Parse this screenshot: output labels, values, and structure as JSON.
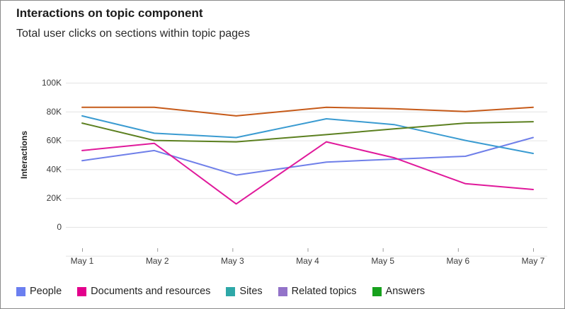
{
  "card": {
    "title": "Interactions on topic component",
    "subtitle": "Total user clicks on sections within topic pages"
  },
  "chart_data": {
    "type": "line",
    "ylabel": "Interactions",
    "ylim": [
      0,
      100000
    ],
    "y_ticks": [
      0,
      20000,
      40000,
      60000,
      80000,
      100000
    ],
    "y_tick_labels": [
      "0",
      "20K",
      "40K",
      "60K",
      "80K",
      "100K"
    ],
    "categories": [
      "May 1",
      "May 2",
      "May 3",
      "May 4",
      "May 5",
      "May 6",
      "May 7"
    ],
    "x": [
      0,
      1,
      2,
      3,
      4,
      5,
      6
    ],
    "grid": true,
    "legend": "bottom-left",
    "series": [
      {
        "name": "People",
        "color": "#6f7fe9",
        "x": [
          0,
          0.96,
          2.05,
          3.25,
          4.15,
          5.1,
          6
        ],
        "values": [
          46000,
          53000,
          36000,
          45000,
          47000,
          49000,
          62000
        ]
      },
      {
        "name": "Documents and resources",
        "color": "#e0199b",
        "x": [
          0,
          0.96,
          2.05,
          3.25,
          4.15,
          5.1,
          6
        ],
        "values": [
          53000,
          58000,
          16000,
          59000,
          48000,
          30000,
          26000
        ]
      },
      {
        "name": "Sites",
        "color": "#3a9bd1",
        "x": [
          0,
          0.96,
          2.05,
          3.25,
          4.15,
          5.1,
          6
        ],
        "values": [
          77000,
          65000,
          62000,
          75000,
          71000,
          60000,
          51000
        ]
      },
      {
        "name": "Related topics",
        "color": "#c65a19",
        "x": [
          0,
          0.96,
          2.05,
          3.25,
          4.15,
          5.1,
          6
        ],
        "values": [
          83000,
          83000,
          77000,
          83000,
          82000,
          80000,
          83000
        ]
      },
      {
        "name": "Answers",
        "color": "#5c8020",
        "x": [
          0,
          0.96,
          2.05,
          3.25,
          4.15,
          5.1,
          6
        ],
        "values": [
          72000,
          60000,
          59000,
          64000,
          68000,
          72000,
          73000
        ]
      }
    ]
  },
  "legend": [
    {
      "label": "People",
      "color": "#6b7ff0"
    },
    {
      "label": "Documents and resources",
      "color": "#e3008c"
    },
    {
      "label": "Sites",
      "color": "#2ea8a8"
    },
    {
      "label": "Related topics",
      "color": "#9373c9"
    },
    {
      "label": "Answers",
      "color": "#17a11d"
    }
  ]
}
